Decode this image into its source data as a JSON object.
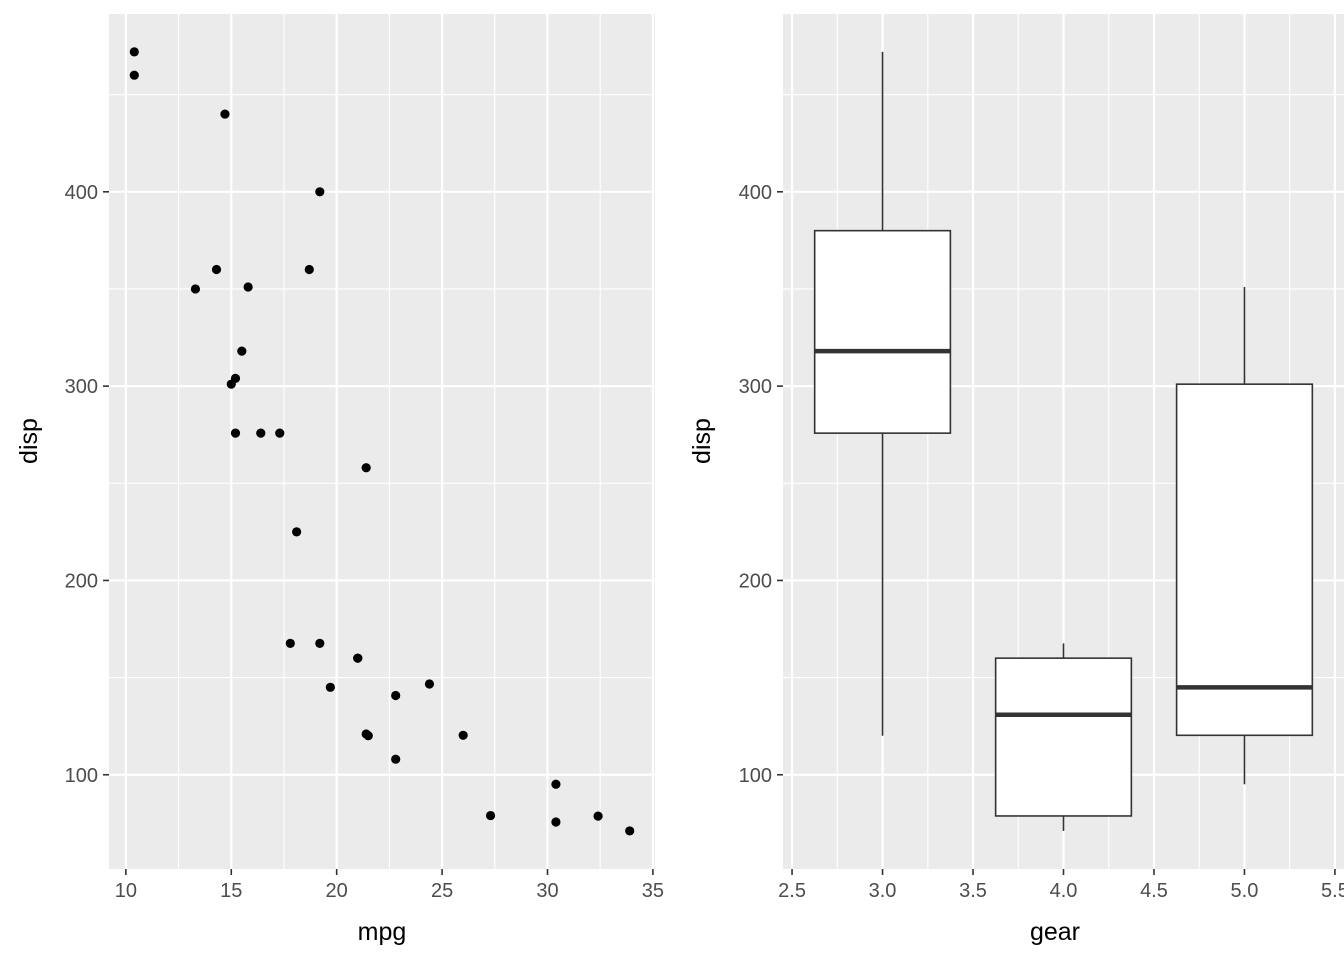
{
  "chart_data": [
    {
      "type": "scatter",
      "xlabel": "mpg",
      "ylabel": "disp",
      "xlim": [
        9.2,
        35.1
      ],
      "ylim": [
        51.5,
        491.5
      ],
      "x_ticks": [
        10,
        15,
        20,
        25,
        30,
        35
      ],
      "y_ticks": [
        100,
        200,
        300,
        400
      ],
      "grid": true,
      "point_color": "#000000",
      "points": [
        {
          "x": 21.0,
          "y": 160
        },
        {
          "x": 21.0,
          "y": 160
        },
        {
          "x": 22.8,
          "y": 108
        },
        {
          "x": 21.4,
          "y": 258
        },
        {
          "x": 18.7,
          "y": 360
        },
        {
          "x": 18.1,
          "y": 225
        },
        {
          "x": 14.3,
          "y": 360
        },
        {
          "x": 24.4,
          "y": 146.7
        },
        {
          "x": 22.8,
          "y": 140.8
        },
        {
          "x": 19.2,
          "y": 167.6
        },
        {
          "x": 17.8,
          "y": 167.6
        },
        {
          "x": 16.4,
          "y": 275.8
        },
        {
          "x": 17.3,
          "y": 275.8
        },
        {
          "x": 15.2,
          "y": 275.8
        },
        {
          "x": 10.4,
          "y": 472
        },
        {
          "x": 10.4,
          "y": 460
        },
        {
          "x": 14.7,
          "y": 440
        },
        {
          "x": 32.4,
          "y": 78.7
        },
        {
          "x": 30.4,
          "y": 75.7
        },
        {
          "x": 33.9,
          "y": 71.1
        },
        {
          "x": 21.5,
          "y": 120.1
        },
        {
          "x": 15.5,
          "y": 318
        },
        {
          "x": 15.2,
          "y": 304
        },
        {
          "x": 13.3,
          "y": 350
        },
        {
          "x": 19.2,
          "y": 400
        },
        {
          "x": 27.3,
          "y": 79
        },
        {
          "x": 26.0,
          "y": 120.3
        },
        {
          "x": 30.4,
          "y": 95.1
        },
        {
          "x": 15.8,
          "y": 351
        },
        {
          "x": 19.7,
          "y": 145
        },
        {
          "x": 15.0,
          "y": 301
        },
        {
          "x": 21.4,
          "y": 121
        }
      ]
    },
    {
      "type": "box",
      "xlabel": "gear",
      "ylabel": "disp",
      "xlim": [
        2.45,
        5.55
      ],
      "ylim": [
        51.5,
        491.5
      ],
      "x_ticks": [
        "2.5",
        "3.0",
        "3.5",
        "4.0",
        "4.5",
        "5.0",
        "5.5"
      ],
      "y_ticks": [
        100,
        200,
        300,
        400
      ],
      "grid": true,
      "box_fill": "#ffffff",
      "box_stroke": "#333333",
      "boxes": [
        {
          "x": 3,
          "whisker_low": 120.1,
          "q1": 275.8,
          "median": 318,
          "q3": 380,
          "whisker_high": 472
        },
        {
          "x": 4,
          "whisker_low": 71.1,
          "q1": 78.8,
          "median": 130.9,
          "q3": 160,
          "whisker_high": 167.6
        },
        {
          "x": 5,
          "whisker_low": 95.1,
          "q1": 120.3,
          "median": 145,
          "q3": 301,
          "whisker_high": 351
        }
      ]
    }
  ]
}
